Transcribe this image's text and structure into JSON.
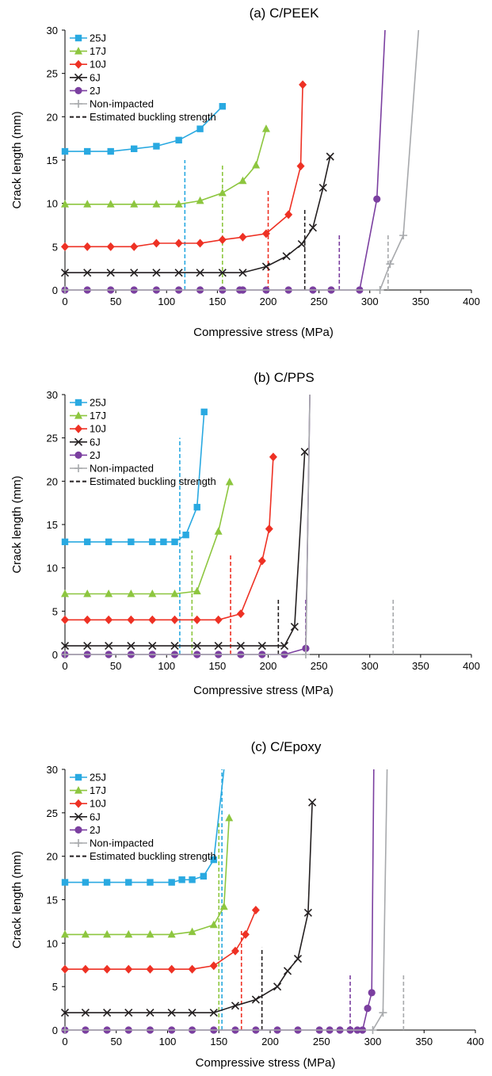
{
  "colors": {
    "25J": "#29a9e1",
    "17J": "#8dc63f",
    "10J": "#ee3124",
    "6J": "#231f20",
    "2J": "#7b3fa0",
    "Non-impacted": "#a7a9ac",
    "Estimated buckling strength": "#231f20"
  },
  "chart_data": [
    {
      "type": "line",
      "title": "(a) C/PEEK",
      "xlabel": "Compressive stress (MPa)",
      "ylabel": "Crack length (mm)",
      "xlim": [
        0,
        400
      ],
      "ylim": [
        0,
        30
      ],
      "xticks": [
        "0",
        "50",
        "100",
        "150",
        "200",
        "250",
        "300",
        "350",
        "400"
      ],
      "yticks": [
        "0",
        "5",
        "10",
        "15",
        "20",
        "25",
        "30"
      ],
      "legend": [
        "25J",
        "17J",
        "10J",
        "6J",
        "2J",
        "Non-impacted",
        "Estimated buckling strength"
      ],
      "legend_position": "top-left",
      "grid": false,
      "series": [
        {
          "name": "25J",
          "marker": "square",
          "points": [
            [
              0,
              16
            ],
            [
              22,
              16
            ],
            [
              45,
              16
            ],
            [
              68,
              16.3
            ],
            [
              90,
              16.6
            ],
            [
              112,
              17.3
            ],
            [
              133,
              18.6
            ],
            [
              155,
              21.2
            ]
          ]
        },
        {
          "name": "17J",
          "marker": "triangle",
          "points": [
            [
              0,
              9.9
            ],
            [
              22,
              9.9
            ],
            [
              45,
              9.9
            ],
            [
              68,
              9.9
            ],
            [
              90,
              9.9
            ],
            [
              112,
              9.9
            ],
            [
              133,
              10.3
            ],
            [
              155,
              11.2
            ],
            [
              175,
              12.6
            ],
            [
              188,
              14.4
            ],
            [
              198,
              18.6
            ]
          ]
        },
        {
          "name": "10J",
          "marker": "diamond",
          "points": [
            [
              0,
              5
            ],
            [
              22,
              5
            ],
            [
              45,
              5
            ],
            [
              68,
              5
            ],
            [
              90,
              5.4
            ],
            [
              112,
              5.4
            ],
            [
              133,
              5.4
            ],
            [
              155,
              5.8
            ],
            [
              175,
              6.1
            ],
            [
              198,
              6.5
            ],
            [
              220,
              8.7
            ],
            [
              232,
              14.3
            ],
            [
              234,
              23.7
            ]
          ]
        },
        {
          "name": "6J",
          "marker": "x",
          "points": [
            [
              0,
              2
            ],
            [
              22,
              2
            ],
            [
              45,
              2
            ],
            [
              68,
              2
            ],
            [
              90,
              2
            ],
            [
              112,
              2
            ],
            [
              133,
              2
            ],
            [
              155,
              2
            ],
            [
              175,
              2
            ],
            [
              198,
              2.7
            ],
            [
              218,
              3.9
            ],
            [
              233,
              5.3
            ],
            [
              244,
              7.2
            ],
            [
              254,
              11.8
            ],
            [
              261,
              15.4
            ]
          ]
        },
        {
          "name": "2J",
          "marker": "circle",
          "points": [
            [
              0,
              0
            ],
            [
              22,
              0
            ],
            [
              45,
              0
            ],
            [
              68,
              0
            ],
            [
              90,
              0
            ],
            [
              112,
              0
            ],
            [
              133,
              0
            ],
            [
              155,
              0
            ],
            [
              172,
              0
            ],
            [
              175,
              0
            ],
            [
              198,
              0
            ],
            [
              220,
              0
            ],
            [
              244,
              0
            ],
            [
              262,
              0
            ],
            [
              290,
              0
            ],
            [
              307,
              10.5
            ],
            [
              315,
              30
            ]
          ]
        },
        {
          "name": "Non-impacted",
          "marker": "plus",
          "points": [
            [
              0,
              0
            ],
            [
              310,
              0
            ],
            [
              320,
              3
            ],
            [
              333,
              6.3
            ],
            [
              348,
              30
            ]
          ]
        }
      ],
      "buckling": [
        {
          "series": "25J",
          "x": 118,
          "y": 15
        },
        {
          "series": "17J",
          "x": 155,
          "y": 14.5
        },
        {
          "series": "10J",
          "x": 200,
          "y": 11.5
        },
        {
          "series": "6J",
          "x": 236,
          "y": 9.5
        },
        {
          "series": "2J",
          "x": 270,
          "y": 6.5
        },
        {
          "series": "Non-impacted",
          "x": 318,
          "y": 6.5
        }
      ]
    },
    {
      "type": "line",
      "title": "(b) C/PPS",
      "xlabel": "Compressive stress (MPa)",
      "ylabel": "Crack length (mm)",
      "xlim": [
        0,
        400
      ],
      "ylim": [
        0,
        30
      ],
      "xticks": [
        "0",
        "50",
        "100",
        "150",
        "200",
        "250",
        "300",
        "350",
        "400"
      ],
      "yticks": [
        "0",
        "5",
        "10",
        "15",
        "20",
        "25",
        "30"
      ],
      "legend": [
        "25J",
        "17J",
        "10J",
        "6J",
        "2J",
        "Non-impacted",
        "Estimated buckling strength"
      ],
      "legend_position": "top-left",
      "grid": false,
      "series": [
        {
          "name": "25J",
          "marker": "square",
          "points": [
            [
              0,
              13
            ],
            [
              22,
              13
            ],
            [
              43,
              13
            ],
            [
              65,
              13
            ],
            [
              86,
              13
            ],
            [
              97,
              13
            ],
            [
              108,
              13
            ],
            [
              119,
              13.8
            ],
            [
              130,
              17
            ],
            [
              137,
              28
            ]
          ]
        },
        {
          "name": "17J",
          "marker": "triangle",
          "points": [
            [
              0,
              7
            ],
            [
              22,
              7
            ],
            [
              43,
              7
            ],
            [
              65,
              7
            ],
            [
              86,
              7
            ],
            [
              108,
              7
            ],
            [
              130,
              7.3
            ],
            [
              151,
              14.2
            ],
            [
              162,
              19.9
            ]
          ]
        },
        {
          "name": "10J",
          "marker": "diamond",
          "points": [
            [
              0,
              4
            ],
            [
              22,
              4
            ],
            [
              43,
              4
            ],
            [
              65,
              4
            ],
            [
              86,
              4
            ],
            [
              108,
              4
            ],
            [
              130,
              4
            ],
            [
              151,
              4
            ],
            [
              173,
              4.7
            ],
            [
              194,
              10.8
            ],
            [
              201,
              14.5
            ],
            [
              205,
              22.8
            ]
          ]
        },
        {
          "name": "6J",
          "marker": "x",
          "points": [
            [
              0,
              1
            ],
            [
              22,
              1
            ],
            [
              43,
              1
            ],
            [
              65,
              1
            ],
            [
              86,
              1
            ],
            [
              108,
              1
            ],
            [
              130,
              1
            ],
            [
              151,
              1
            ],
            [
              173,
              1
            ],
            [
              194,
              1
            ],
            [
              216,
              1
            ],
            [
              226,
              3.2
            ],
            [
              236,
              23.4
            ]
          ]
        },
        {
          "name": "2J",
          "marker": "circle",
          "points": [
            [
              0,
              0
            ],
            [
              22,
              0
            ],
            [
              43,
              0
            ],
            [
              65,
              0
            ],
            [
              86,
              0
            ],
            [
              108,
              0
            ],
            [
              130,
              0
            ],
            [
              151,
              0
            ],
            [
              173,
              0
            ],
            [
              194,
              0
            ],
            [
              216,
              0
            ],
            [
              237,
              0.7
            ],
            [
              241,
              30
            ]
          ]
        },
        {
          "name": "Non-impacted",
          "marker": "plus",
          "points": [
            [
              0,
              0
            ],
            [
              237,
              0
            ],
            [
              241,
              30
            ]
          ]
        }
      ],
      "buckling": [
        {
          "series": "25J",
          "x": 113,
          "y": 25
        },
        {
          "series": "17J",
          "x": 125,
          "y": 12
        },
        {
          "series": "10J",
          "x": 163,
          "y": 11.5
        },
        {
          "series": "6J",
          "x": 210,
          "y": 6.5
        },
        {
          "series": "2J",
          "x": 237,
          "y": 6.5
        },
        {
          "series": "Non-impacted",
          "x": 323,
          "y": 6.5
        }
      ]
    },
    {
      "type": "line",
      "title": "(c) C/Epoxy",
      "xlabel": "Compressive stress (MPa)",
      "ylabel": "Crack length (mm)",
      "xlim": [
        0,
        400
      ],
      "ylim": [
        0,
        30
      ],
      "xticks": [
        "0",
        "50",
        "100",
        "150",
        "200",
        "250",
        "300",
        "350",
        "400"
      ],
      "yticks": [
        "0",
        "5",
        "10",
        "15",
        "20",
        "25",
        "30"
      ],
      "legend": [
        "25J",
        "17J",
        "10J",
        "6J",
        "2J",
        "Non-impacted",
        "Estimated buckling strength"
      ],
      "legend_position": "top-left",
      "grid": false,
      "series": [
        {
          "name": "25J",
          "marker": "square",
          "points": [
            [
              0,
              17
            ],
            [
              20,
              17
            ],
            [
              41,
              17
            ],
            [
              62,
              17
            ],
            [
              83,
              17
            ],
            [
              104,
              17
            ],
            [
              114,
              17.3
            ],
            [
              124,
              17.3
            ],
            [
              135,
              17.7
            ],
            [
              145,
              19.6
            ],
            [
              155,
              30
            ]
          ]
        },
        {
          "name": "17J",
          "marker": "triangle",
          "points": [
            [
              0,
              11
            ],
            [
              20,
              11
            ],
            [
              41,
              11
            ],
            [
              62,
              11
            ],
            [
              83,
              11
            ],
            [
              104,
              11
            ],
            [
              124,
              11.3
            ],
            [
              145,
              12.1
            ],
            [
              155,
              14.2
            ],
            [
              160,
              24.4
            ]
          ]
        },
        {
          "name": "10J",
          "marker": "diamond",
          "points": [
            [
              0,
              7
            ],
            [
              20,
              7
            ],
            [
              41,
              7
            ],
            [
              62,
              7
            ],
            [
              83,
              7
            ],
            [
              104,
              7
            ],
            [
              124,
              7
            ],
            [
              145,
              7.4
            ],
            [
              166,
              9.1
            ],
            [
              176,
              11
            ],
            [
              186,
              13.8
            ]
          ]
        },
        {
          "name": "6J",
          "marker": "x",
          "points": [
            [
              0,
              2
            ],
            [
              20,
              2
            ],
            [
              41,
              2
            ],
            [
              62,
              2
            ],
            [
              83,
              2
            ],
            [
              104,
              2
            ],
            [
              124,
              2
            ],
            [
              145,
              2
            ],
            [
              166,
              2.8
            ],
            [
              186,
              3.5
            ],
            [
              207,
              5
            ],
            [
              217,
              6.8
            ],
            [
              227,
              8.2
            ],
            [
              237,
              13.5
            ],
            [
              241,
              26.2
            ]
          ]
        },
        {
          "name": "2J",
          "marker": "circle",
          "points": [
            [
              0,
              0
            ],
            [
              20,
              0
            ],
            [
              41,
              0
            ],
            [
              62,
              0
            ],
            [
              83,
              0
            ],
            [
              104,
              0
            ],
            [
              124,
              0
            ],
            [
              145,
              0
            ],
            [
              166,
              0
            ],
            [
              186,
              0
            ],
            [
              207,
              0
            ],
            [
              227,
              0
            ],
            [
              248,
              0
            ],
            [
              258,
              0
            ],
            [
              268,
              0
            ],
            [
              278,
              0
            ],
            [
              285,
              0
            ],
            [
              290,
              0
            ],
            [
              295,
              2.5
            ],
            [
              299,
              4.3
            ],
            [
              301,
              30
            ]
          ]
        },
        {
          "name": "Non-impacted",
          "marker": "plus",
          "points": [
            [
              0,
              0
            ],
            [
              300,
              0
            ],
            [
              310,
              2
            ],
            [
              314,
              30
            ]
          ]
        }
      ],
      "buckling": [
        {
          "series": "25J",
          "x": 153,
          "y": 30
        },
        {
          "series": "17J",
          "x": 150,
          "y": 24
        },
        {
          "series": "10J",
          "x": 172,
          "y": 11.5
        },
        {
          "series": "6J",
          "x": 192,
          "y": 9.5
        },
        {
          "series": "2J",
          "x": 278,
          "y": 6.5
        },
        {
          "series": "Non-impacted",
          "x": 330,
          "y": 6.5
        }
      ]
    }
  ]
}
